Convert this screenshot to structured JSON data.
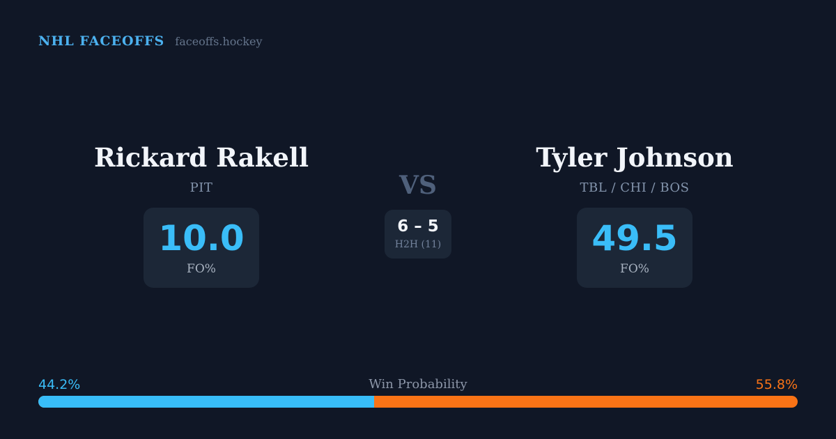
{
  "header": {
    "brand": "NHL FACEOFFS",
    "site": "faceoffs.hockey"
  },
  "matchup": {
    "vs_label": "VS",
    "player1": {
      "name": "Rickard Rakell",
      "teams": "PIT",
      "stat_value": "10.0",
      "stat_label": "FO%"
    },
    "player2": {
      "name": "Tyler Johnson",
      "teams": "TBL / CHI / BOS",
      "stat_value": "49.5",
      "stat_label": "FO%"
    },
    "h2h": {
      "record": "6 – 5",
      "label": "H2H (11)"
    }
  },
  "win_probability": {
    "title": "Win Probability",
    "left_pct_label": "44.2%",
    "right_pct_label": "55.8%",
    "left_value": 44.2,
    "right_value": 55.8
  },
  "colors": {
    "background": "#101726",
    "card_background": "#1c2737",
    "accent_blue": "#38bdf8",
    "accent_orange": "#f97316",
    "text_primary": "#f2f5fa",
    "text_muted": "#8495ad"
  }
}
